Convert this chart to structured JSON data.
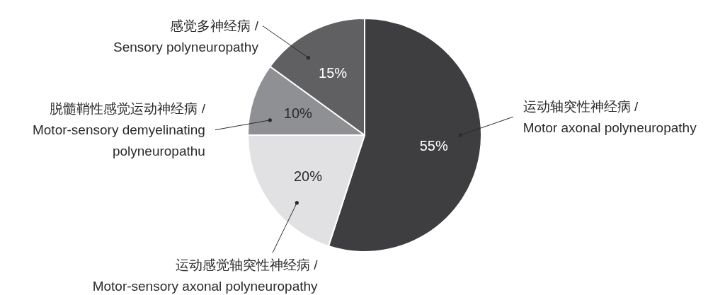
{
  "chart_data": {
    "type": "pie",
    "categories": [
      "运动轴突性神经病 / Motor axonal polyneuropathy",
      "运动感觉轴突性神经病 / Motor-sensory axonal polyneuropathy",
      "脱髓鞘性感觉运动神经病 / Motor-sensory demyelinating polyneuropathu",
      "感觉多神经病 / Sensory polyneuropathy"
    ],
    "values": [
      55,
      20,
      10,
      15
    ],
    "colors": [
      "#3e3e40",
      "#e1e1e3",
      "#8f9094",
      "#606063"
    ],
    "value_labels": [
      "55%",
      "20%",
      "10%",
      "15%"
    ]
  }
}
